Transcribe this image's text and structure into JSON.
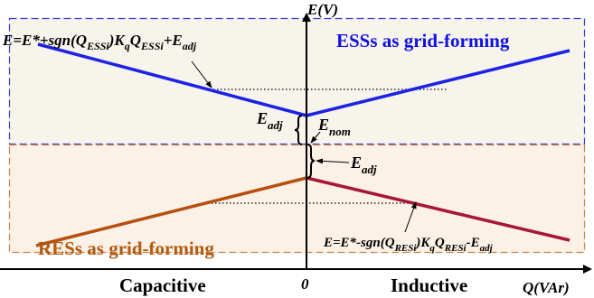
{
  "axes": {
    "y_label": "E(V)",
    "x_label": "Q(VAr)",
    "origin_label": "0",
    "left_region": "Capacitive",
    "right_region": "Inductive"
  },
  "regions": {
    "ess_label": "ESSs as grid-forming",
    "res_label": "RESs as grid-forming"
  },
  "labels": {
    "e_adj": {
      "main": "E",
      "sub": "adj"
    },
    "e_nom": {
      "main": "E",
      "sub": "nom"
    }
  },
  "equations": {
    "ess": [
      {
        "t": "E=E*+sgn(Q",
        "sub": false
      },
      {
        "t": "ESSi",
        "sub": true
      },
      {
        "t": ")K",
        "sub": false
      },
      {
        "t": "q",
        "sub": true
      },
      {
        "t": "Q",
        "sub": false
      },
      {
        "t": "ESSi",
        "sub": true
      },
      {
        "t": "+E",
        "sub": false
      },
      {
        "t": "adj",
        "sub": true
      }
    ],
    "res": [
      {
        "t": "E=E*-sgn(Q",
        "sub": false
      },
      {
        "t": "RESi",
        "sub": true
      },
      {
        "t": ")K",
        "sub": false
      },
      {
        "t": "q",
        "sub": true
      },
      {
        "t": "Q",
        "sub": false
      },
      {
        "t": "RESi",
        "sub": true
      },
      {
        "t": "-E",
        "sub": false
      },
      {
        "t": "adj",
        "sub": true
      }
    ]
  },
  "colors": {
    "ess_line": "#1c22e6",
    "res_line_left": "#b5500f",
    "res_line_right": "#a8153a",
    "ess_box": "#3a3ad6",
    "res_box": "#c8864a",
    "ess_fill": "#f7f4ec",
    "res_fill": "#fbf1e6",
    "ess_text": "#1010e0",
    "res_text": "#b05a12"
  }
}
